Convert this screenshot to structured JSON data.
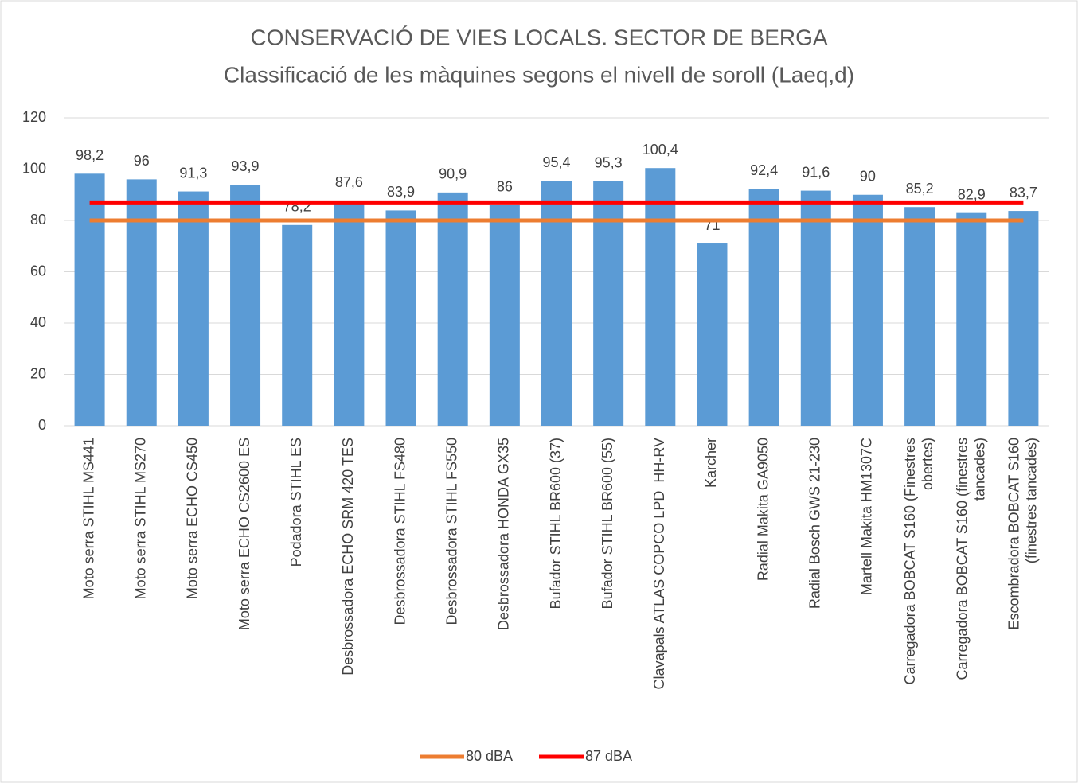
{
  "chart_data": {
    "type": "bar",
    "title": "CONSERVACIÓ DE VIES LOCALS. SECTOR DE BERGA",
    "subtitle": "Classificació de les màquines segons el nivell de soroll (Laeq,d)",
    "categories": [
      "Moto serra STIHL MS441",
      "Moto serra STIHL MS270",
      "Moto serra ECHO CS450",
      "Moto serra ECHO CS2600 ES",
      "Podadora STIHL ES",
      "Desbrossadora ECHO SRM 420 TES",
      "Desbrossadora STIHL FS480",
      "Desbrossadora STIHL FS550",
      "Desbrossadora HONDA GX35",
      "Bufador STIHL BR600 (37)",
      "Bufador STIHL BR600 (55)",
      "Clavapals ATLAS COPCO LPD  HH-RV",
      "Karcher",
      "Radial Makita GA9050",
      "Radial Bosch GWS 21-230",
      "Martell Makita HM1307C",
      "Carregadora BOBCAT S160 (Finestres obertes)",
      "Carregadora BOBCAT S160 (finestres tancades)",
      "Escombradora BOBCAT S160 (finestres tancades)"
    ],
    "values": [
      98.2,
      96,
      91.3,
      93.9,
      78.2,
      87.6,
      83.9,
      90.9,
      86,
      95.4,
      95.3,
      100.4,
      71,
      92.4,
      91.6,
      90,
      85.2,
      82.9,
      83.7
    ],
    "value_labels": [
      "98,2",
      "96",
      "91,3",
      "93,9",
      "78,2",
      "87,6",
      "83,9",
      "90,9",
      "86",
      "95,4",
      "95,3",
      "100,4",
      "71",
      "92,4",
      "91,6",
      "90",
      "85,2",
      "82,9",
      "83,7"
    ],
    "color": "#5b9bd5",
    "series": [
      {
        "name": "80 dBA",
        "color": "#ed7d31",
        "values": [
          80,
          80,
          80,
          80,
          80,
          80,
          80,
          80,
          80,
          80,
          80,
          80,
          80,
          80,
          80,
          80,
          80,
          80,
          80
        ]
      },
      {
        "name": "87 dBA",
        "color": "#ff0000",
        "values": [
          87,
          87,
          87,
          87,
          87,
          87,
          87,
          87,
          87,
          87,
          87,
          87,
          87,
          87,
          87,
          87,
          87,
          87,
          87
        ]
      }
    ],
    "ylim": [
      0,
      120
    ],
    "yticks": [
      0,
      20,
      40,
      60,
      80,
      100,
      120
    ],
    "grid": true,
    "legend": "bottom"
  }
}
